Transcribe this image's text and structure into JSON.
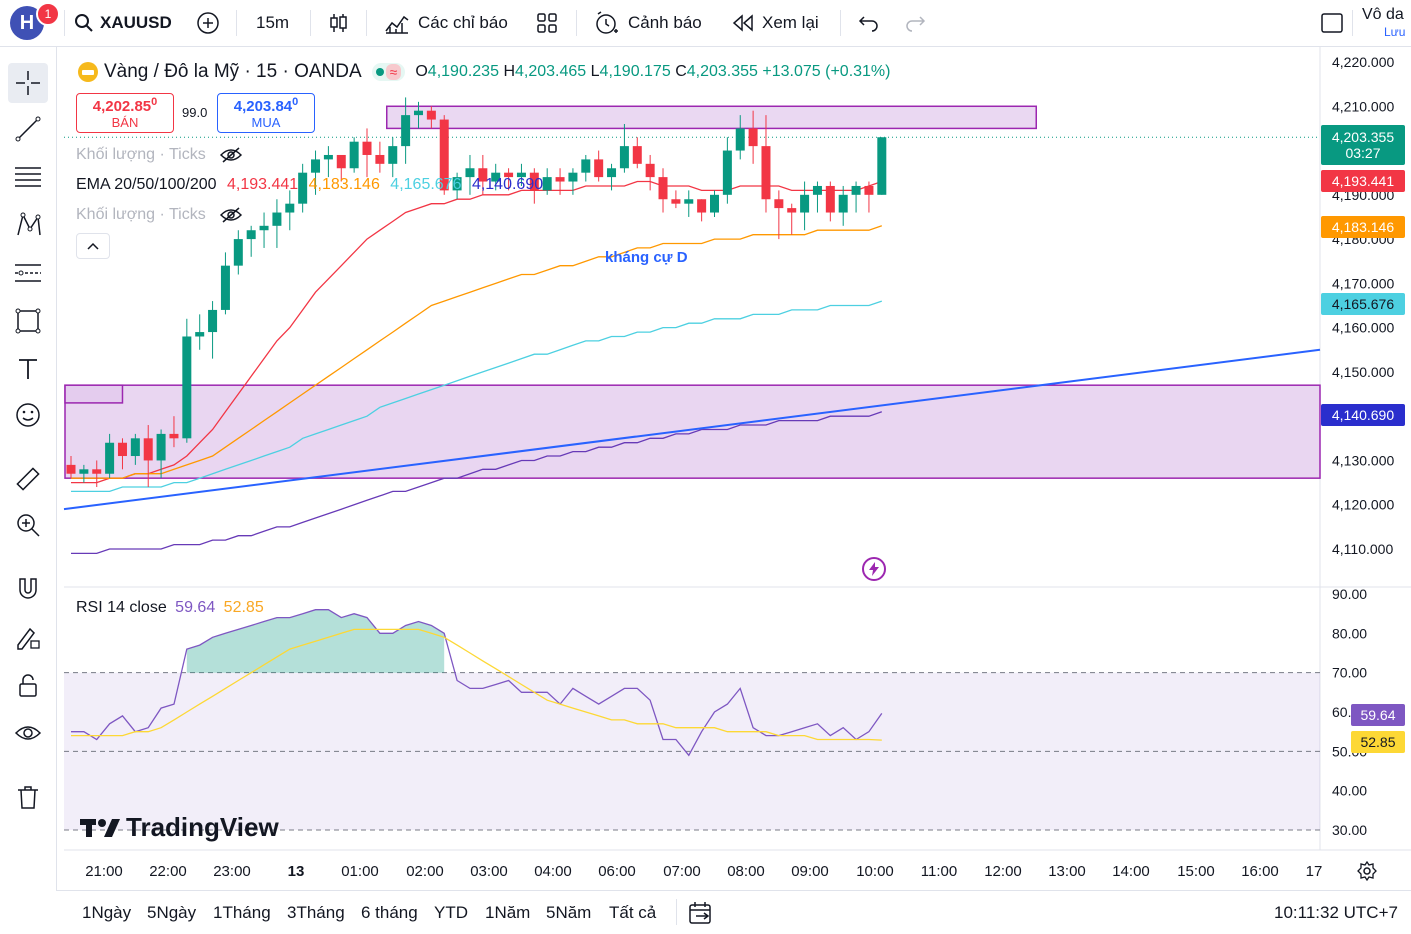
{
  "topbar": {
    "avatar_letter": "H",
    "notif_count": "1",
    "symbol": "XAUUSD",
    "interval": "15m",
    "indicators_label": "Các chỉ báo",
    "alert_label": "Cảnh báo",
    "replay_label": "Xem lại",
    "right_label": "Vô da",
    "save_label": "Lưu"
  },
  "legend": {
    "title": "Vàng / Đô la Mỹ · 15 · OANDA",
    "open_label": "O",
    "open": "4,190.235",
    "high_label": "H",
    "high": "4,203.465",
    "low_label": "L",
    "low": "4,190.175",
    "close_label": "C",
    "close": "4,203.355",
    "change": "+13.075 (+0.31%)",
    "sell_price": "4,202.85",
    "sell_sup": "0",
    "sell_label": "BÁN",
    "spread": "99.0",
    "buy_price": "4,203.84",
    "buy_sup": "0",
    "buy_label": "MUA",
    "volume_label": "Khối lượng · Ticks",
    "volume_label2": "Khối lượng · Ticks",
    "ema_label": "EMA 20/50/100/200",
    "ema20": "4,193.441",
    "ema50": "4,183.146",
    "ema100": "4,165.676",
    "ema200": "4,140.690",
    "annotation": "kháng cự D"
  },
  "rsi_legend": {
    "label": "RSI 14 close",
    "rsi": "59.64",
    "ma": "52.85"
  },
  "price_tags": {
    "last": "4,203.355",
    "countdown": "03:27",
    "ema20": "4,193.441",
    "ema50": "4,183.146",
    "ema100": "4,165.676",
    "ema200": "4,140.690",
    "rsi": "59.64",
    "rsi_ma": "52.85"
  },
  "colors": {
    "up": "#089981",
    "down": "#f23645",
    "ema20": "#f23645",
    "ema50": "#ff9800",
    "ema100": "#4dd0e1",
    "ema200": "#673ab7",
    "trendline": "#2962ff",
    "zone_fill": "#e1c8ec",
    "zone_border": "#9c27b0",
    "rsi_line": "#7e57c2",
    "rsi_ma": "#fdd835"
  },
  "watermark": "TradingView",
  "bottombar": {
    "ranges": [
      "1Ngày",
      "5Ngày",
      "1Tháng",
      "3Tháng",
      "6 tháng",
      "YTD",
      "1Năm",
      "5Năm",
      "Tất cả"
    ],
    "clock": "10:11:32 UTC+7"
  },
  "chart_data": [
    {
      "type": "candlestick",
      "title": "Vàng / Đô la Mỹ · 15 · OANDA",
      "ylim": [
        4105,
        4222
      ],
      "y_ticks": [
        4220,
        4210,
        4200,
        4190,
        4180,
        4170,
        4160,
        4150,
        4140,
        4130,
        4120,
        4110
      ],
      "y_tick_labels": [
        "4,220.000",
        "4,210.000",
        "4,200.000",
        "4,190.000",
        "4,180.000",
        "4,170.000",
        "4,160.000",
        "4,150.000",
        "4,140.000",
        "4,130.000",
        "4,120.000",
        "4,110.000"
      ],
      "x_tick_labels": [
        "21:00",
        "22:00",
        "23:00",
        "13",
        "01:00",
        "02:00",
        "03:00",
        "04:00",
        "06:00",
        "07:00",
        "08:00",
        "09:00",
        "10:00",
        "11:00",
        "12:00",
        "13:00",
        "14:00",
        "15:00",
        "16:00",
        "17"
      ],
      "candles": [
        [
          4129,
          4131,
          4126,
          4127
        ],
        [
          4127,
          4129,
          4125,
          4128
        ],
        [
          4128,
          4130,
          4124,
          4127
        ],
        [
          4127,
          4136,
          4126,
          4134
        ],
        [
          4134,
          4135,
          4128,
          4131
        ],
        [
          4131,
          4136,
          4129,
          4135
        ],
        [
          4135,
          4138,
          4124,
          4130
        ],
        [
          4130,
          4137,
          4126,
          4136
        ],
        [
          4136,
          4140,
          4133,
          4135
        ],
        [
          4135,
          4162,
          4134,
          4158
        ],
        [
          4158,
          4163,
          4155,
          4159
        ],
        [
          4159,
          4166,
          4153,
          4164
        ],
        [
          4164,
          4177,
          4163,
          4174
        ],
        [
          4174,
          4182,
          4172,
          4180
        ],
        [
          4180,
          4183,
          4176,
          4182
        ],
        [
          4182,
          4186,
          4178,
          4183
        ],
        [
          4183,
          4189,
          4178,
          4186
        ],
        [
          4186,
          4191,
          4182,
          4188
        ],
        [
          4188,
          4197,
          4186,
          4195
        ],
        [
          4195,
          4200,
          4190,
          4198
        ],
        [
          4198,
          4201,
          4194,
          4199
        ],
        [
          4199,
          4198,
          4193,
          4196
        ],
        [
          4196,
          4203,
          4195,
          4202
        ],
        [
          4202,
          4205,
          4194,
          4199
        ],
        [
          4199,
          4202,
          4195,
          4197
        ],
        [
          4197,
          4203,
          4194,
          4201
        ],
        [
          4201,
          4212,
          4197,
          4208
        ],
        [
          4208,
          4211,
          4205,
          4209
        ],
        [
          4209,
          4210,
          4205,
          4207
        ],
        [
          4207,
          4208,
          4190,
          4191
        ],
        [
          4191,
          4195,
          4189,
          4194
        ],
        [
          4194,
          4199,
          4190,
          4196
        ],
        [
          4196,
          4199,
          4190,
          4193
        ],
        [
          4193,
          4197,
          4191,
          4195
        ],
        [
          4195,
          4196,
          4191,
          4194
        ],
        [
          4194,
          4197,
          4192,
          4195
        ],
        [
          4195,
          4196,
          4188,
          4191
        ],
        [
          4191,
          4196,
          4190,
          4194
        ],
        [
          4194,
          4196,
          4190,
          4193
        ],
        [
          4193,
          4196,
          4190,
          4195
        ],
        [
          4195,
          4199,
          4193,
          4198
        ],
        [
          4198,
          4200,
          4193,
          4194
        ],
        [
          4194,
          4197,
          4191,
          4196
        ],
        [
          4196,
          4206,
          4195,
          4201
        ],
        [
          4201,
          4203,
          4196,
          4197
        ],
        [
          4197,
          4199,
          4191,
          4194
        ],
        [
          4194,
          4196,
          4186,
          4189
        ],
        [
          4189,
          4191,
          4187,
          4188
        ],
        [
          4188,
          4191,
          4185,
          4189
        ],
        [
          4189,
          4189,
          4184,
          4186
        ],
        [
          4186,
          4191,
          4185,
          4190
        ],
        [
          4190,
          4203,
          4188,
          4200
        ],
        [
          4200,
          4208,
          4198,
          4205
        ],
        [
          4205,
          4209,
          4197,
          4201
        ],
        [
          4201,
          4208,
          4186,
          4189
        ],
        [
          4189,
          4191,
          4180,
          4187
        ],
        [
          4187,
          4188,
          4181,
          4186
        ],
        [
          4186,
          4193,
          4182,
          4190
        ],
        [
          4190,
          4193,
          4186,
          4192
        ],
        [
          4192,
          4193,
          4184,
          4186
        ],
        [
          4186,
          4192,
          4183,
          4190
        ],
        [
          4190,
          4193,
          4186,
          4192
        ],
        [
          4192,
          4193,
          4186,
          4190
        ],
        [
          4190,
          4203,
          4190,
          4203
        ]
      ],
      "ema20": [
        4125,
        4125,
        4125,
        4126,
        4126,
        4127,
        4127,
        4128,
        4129,
        4131,
        4134,
        4137,
        4141,
        4145,
        4149,
        4153,
        4157,
        4160,
        4164,
        4168,
        4171,
        4174,
        4177,
        4180,
        4182,
        4184,
        4186,
        4187,
        4188,
        4188,
        4189,
        4189,
        4190,
        4190,
        4190,
        4191,
        4191,
        4191,
        4191,
        4191,
        4192,
        4192,
        4192,
        4192,
        4193,
        4193,
        4192,
        4192,
        4192,
        4191,
        4191,
        4191,
        4192,
        4192,
        4192,
        4192,
        4191,
        4191,
        4191,
        4191,
        4191,
        4191,
        4192,
        4193
      ],
      "ema50": [
        4126,
        4126,
        4126,
        4126,
        4126,
        4127,
        4127,
        4127,
        4128,
        4129,
        4130,
        4131,
        4133,
        4135,
        4137,
        4139,
        4141,
        4143,
        4145,
        4147,
        4149,
        4151,
        4153,
        4155,
        4157,
        4159,
        4161,
        4163,
        4165,
        4166,
        4167,
        4168,
        4169,
        4170,
        4171,
        4172,
        4172,
        4173,
        4174,
        4174,
        4175,
        4176,
        4176,
        4177,
        4178,
        4178,
        4179,
        4179,
        4179,
        4179,
        4180,
        4180,
        4180,
        4181,
        4181,
        4181,
        4181,
        4181,
        4182,
        4182,
        4182,
        4182,
        4182,
        4183
      ],
      "ema100": [
        4123,
        4123,
        4123,
        4123,
        4124,
        4124,
        4124,
        4124,
        4125,
        4125,
        4126,
        4127,
        4128,
        4129,
        4130,
        4131,
        4132,
        4133,
        4135,
        4136,
        4137,
        4138,
        4139,
        4140,
        4142,
        4143,
        4144,
        4145,
        4146,
        4147,
        4148,
        4149,
        4150,
        4151,
        4152,
        4153,
        4154,
        4154,
        4155,
        4156,
        4157,
        4157,
        4158,
        4158,
        4159,
        4159,
        4160,
        4160,
        4161,
        4161,
        4162,
        4162,
        4162,
        4163,
        4163,
        4163,
        4164,
        4164,
        4164,
        4165,
        4165,
        4165,
        4165,
        4166
      ],
      "ema200": [
        4109,
        4109,
        4109,
        4110,
        4110,
        4110,
        4110,
        4110,
        4111,
        4111,
        4111,
        4112,
        4112,
        4113,
        4113,
        4114,
        4115,
        4115,
        4116,
        4117,
        4118,
        4119,
        4120,
        4121,
        4122,
        4123,
        4123,
        4124,
        4125,
        4126,
        4126,
        4127,
        4128,
        4128,
        4129,
        4130,
        4130,
        4131,
        4131,
        4132,
        4132,
        4133,
        4133,
        4134,
        4134,
        4135,
        4135,
        4136,
        4136,
        4137,
        4137,
        4137,
        4138,
        4138,
        4138,
        4139,
        4139,
        4139,
        4139,
        4140,
        4140,
        4140,
        4140,
        4141
      ],
      "zones": [
        {
          "top": 4210,
          "bottom": 4205,
          "from_index": 25,
          "to_index": 75
        },
        {
          "top": 4147,
          "bottom": 4126,
          "from_index": 0,
          "to_index": 99
        },
        {
          "top": 4147,
          "bottom": 4143,
          "from_index": 0,
          "to_index": 4
        }
      ],
      "trendline": [
        [
          0,
          4119
        ],
        [
          99,
          4155
        ]
      ]
    },
    {
      "type": "line",
      "title": "RSI 14 close",
      "ylim": [
        28,
        94
      ],
      "y_ticks": [
        90,
        80,
        70,
        60,
        50,
        40,
        30
      ],
      "y_tick_labels": [
        "90.00",
        "80.00",
        "70.00",
        "60.00",
        "50.00",
        "40.00",
        "30.00"
      ],
      "bands": [
        70,
        50,
        30
      ],
      "rsi": [
        55,
        55,
        53,
        57,
        59,
        55,
        56,
        61,
        62,
        76,
        77,
        79,
        80,
        81,
        82,
        83,
        84,
        84,
        85,
        86,
        86,
        84,
        85,
        84,
        80,
        80,
        82,
        83,
        82,
        80,
        68,
        66,
        66,
        67,
        68,
        65,
        65,
        65,
        62,
        66,
        64,
        62,
        64,
        66,
        66,
        63,
        53,
        53,
        49,
        55,
        60,
        62,
        66,
        56,
        54,
        54,
        55,
        56,
        57,
        54,
        56,
        53,
        55,
        59.64
      ],
      "rsi_ma": [
        54,
        54,
        54,
        54,
        54,
        55,
        55,
        56,
        58,
        60,
        62,
        64,
        66,
        68,
        70,
        72,
        74,
        76,
        77,
        78,
        79,
        80,
        81,
        81,
        81,
        81,
        81,
        81,
        80,
        79,
        77,
        75,
        73,
        71,
        69,
        67,
        65,
        63,
        62,
        61,
        60,
        59,
        58,
        58,
        57,
        57,
        57,
        56,
        56,
        56,
        56,
        55,
        55,
        55,
        55,
        54,
        54,
        54,
        53,
        53,
        53,
        53,
        53,
        52.85
      ]
    }
  ]
}
